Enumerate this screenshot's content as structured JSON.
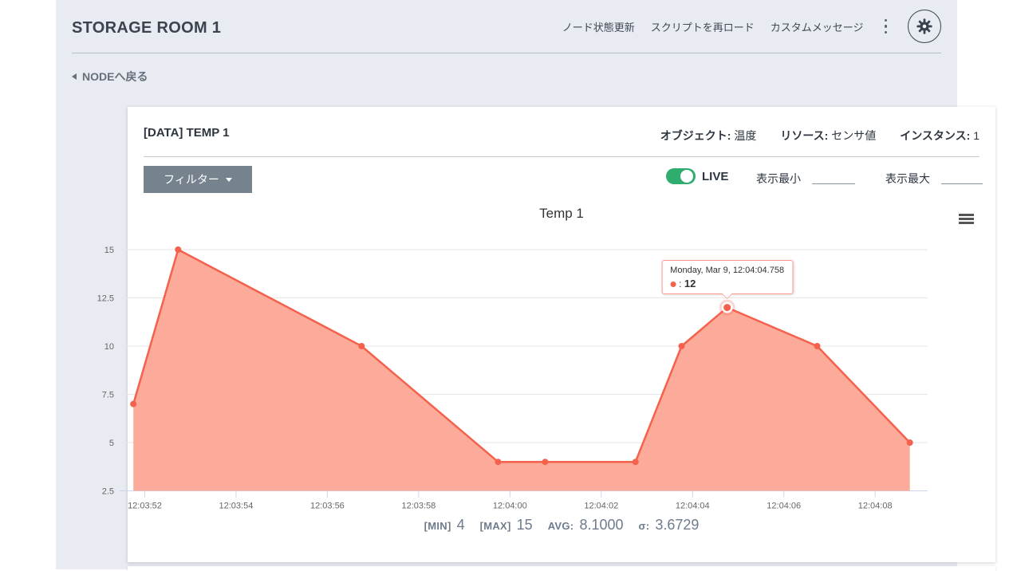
{
  "header": {
    "title": "STORAGE ROOM 1",
    "menu_items": [
      "ノード状態更新",
      "スクリプトを再ロード",
      "カスタムメッセージ"
    ],
    "back_link": "NODEへ戻る"
  },
  "icons": {
    "settings": "gear-icon",
    "more": "kebab-menu-icon",
    "chart_menu": "hamburger-menu-icon",
    "back": "left-triangle-icon",
    "filter": "caret-down-icon"
  },
  "card": {
    "title": "[DATA] TEMP 1",
    "meta": [
      {
        "label": "オブジェクト:",
        "value": "温度"
      },
      {
        "label": "リソース:",
        "value": "センサ値"
      },
      {
        "label": "インスタンス:",
        "value": "1"
      }
    ],
    "filter_button": "フィルター",
    "live_label": "LIVE",
    "display_min_label": "表示最小",
    "display_min_value": "",
    "display_max_label": "表示最大",
    "display_max_value": "",
    "stats": {
      "min_label": "[MIN]",
      "min": "4",
      "max_label": "[MAX]",
      "max": "15",
      "avg_label": "AVG:",
      "avg": "8.1000",
      "sigma_label": "σ:",
      "sigma": "3.6729"
    }
  },
  "colors": {
    "accent_line": "#f4614d",
    "accent_fill": "#fcab9b",
    "toggle_on": "#2ead6e",
    "button_slate": "#76838f",
    "page_bg": "#e8ebf1",
    "axis": "#ccd6eb",
    "grid": "#e6e6e6"
  },
  "chart_data": {
    "type": "area",
    "title": "Temp 1",
    "xlabel": "",
    "ylabel": "",
    "x_ticks": [
      "12:03:52",
      "12:03:54",
      "12:03:56",
      "12:03:58",
      "12:04:00",
      "12:04:02",
      "12:04:04",
      "12:04:06",
      "12:04:08"
    ],
    "y_ticks": [
      2.5,
      5,
      7.5,
      10,
      12.5,
      15
    ],
    "ylim": [
      2.5,
      15
    ],
    "x_range": [
      "12:03:51.45",
      "12:04:09.15"
    ],
    "grid": true,
    "legend_position": "none",
    "series": [
      {
        "name": "Temp 1",
        "color": "#f4614d",
        "fill_color": "#fcab9b",
        "points": [
          {
            "time": "12:03:51.75",
            "value": 7
          },
          {
            "time": "12:03:52.73",
            "value": 15
          },
          {
            "time": "12:03:56.75",
            "value": 10
          },
          {
            "time": "12:03:59.74",
            "value": 4
          },
          {
            "time": "12:04:00.77",
            "value": 4
          },
          {
            "time": "12:04:02.75",
            "value": 4
          },
          {
            "time": "12:04:03.76",
            "value": 10
          },
          {
            "time": "12:04:04.758",
            "value": 12
          },
          {
            "time": "12:04:06.73",
            "value": 10
          },
          {
            "time": "12:04:08.76",
            "value": 5
          }
        ]
      }
    ],
    "hover_point_index": 7,
    "tooltip": {
      "header": "Monday, Mar 9, 12:04:04.758",
      "value": "12"
    }
  }
}
